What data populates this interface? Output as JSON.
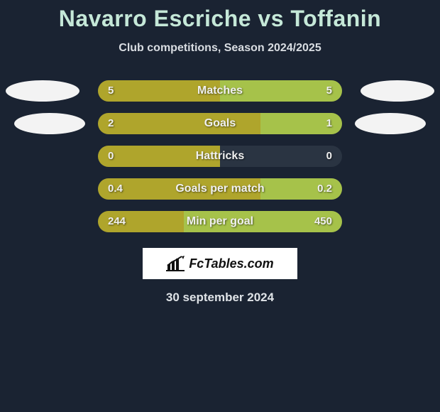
{
  "title": "Navarro Escriche vs Toffanin",
  "subtitle": "Club competitions, Season 2024/2025",
  "date": "30 september 2024",
  "logo_text": "FcTables.com",
  "colors": {
    "background": "#1a2332",
    "title": "#c5e8d8",
    "bar_bg": "#2a3442",
    "left_fill": "#afa52c",
    "right_fill": "#a6c24a",
    "oval": "#f3f3f3"
  },
  "stats": [
    {
      "label": "Matches",
      "left_value": "5",
      "right_value": "5",
      "left_pct": 50,
      "right_pct": 50,
      "left_oval": "big",
      "right_oval": "big"
    },
    {
      "label": "Goals",
      "left_value": "2",
      "right_value": "1",
      "left_pct": 66.7,
      "right_pct": 33.3,
      "left_oval": "small",
      "right_oval": "small"
    },
    {
      "label": "Hattricks",
      "left_value": "0",
      "right_value": "0",
      "left_pct": 50,
      "right_pct": 0,
      "left_oval": "none",
      "right_oval": "none"
    },
    {
      "label": "Goals per match",
      "left_value": "0.4",
      "right_value": "0.2",
      "left_pct": 66.7,
      "right_pct": 33.3,
      "left_oval": "none",
      "right_oval": "none"
    },
    {
      "label": "Min per goal",
      "left_value": "244",
      "right_value": "450",
      "left_pct": 35.2,
      "right_pct": 64.8,
      "left_oval": "none",
      "right_oval": "none"
    }
  ]
}
